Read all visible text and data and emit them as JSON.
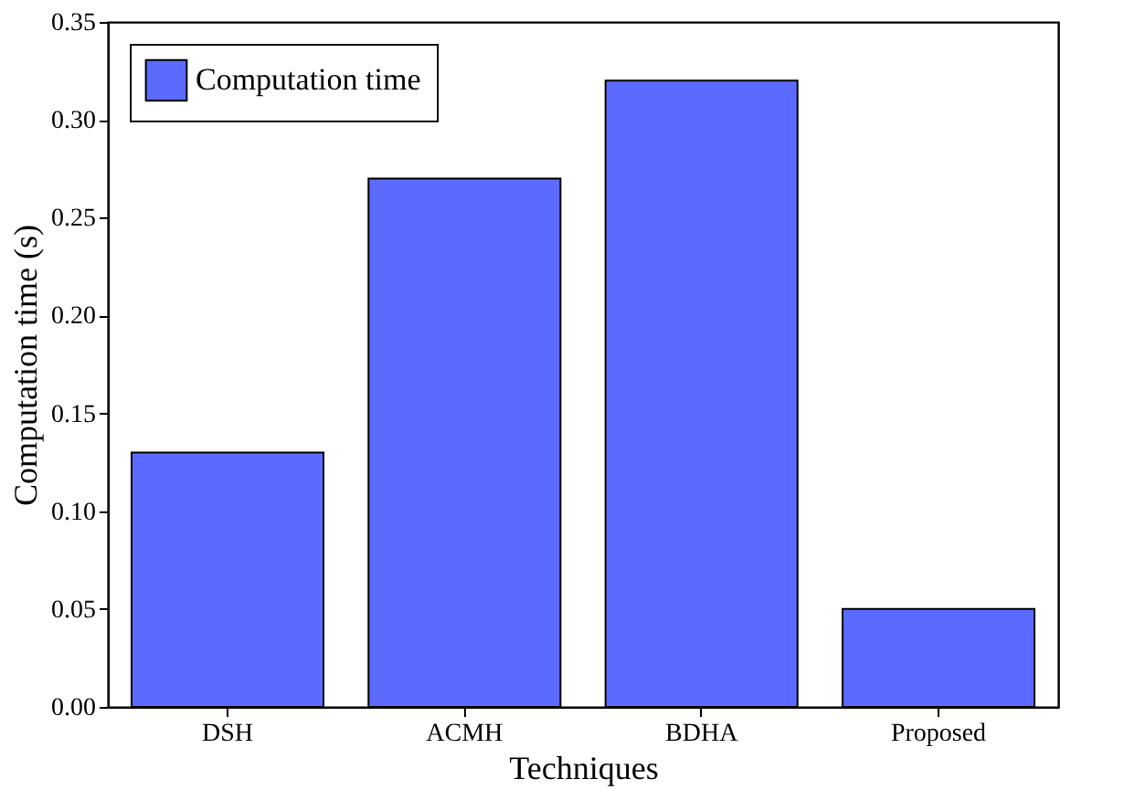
{
  "chart_data": {
    "type": "bar",
    "xlabel": "Techniques",
    "ylabel": "Computation time (s)",
    "categories": [
      "DSH",
      "ACMH",
      "BDHA",
      "Proposed"
    ],
    "series": [
      {
        "name": "Computation time",
        "color": "#5b6bff",
        "values": [
          0.13,
          0.27,
          0.32,
          0.05
        ]
      }
    ],
    "ylim": [
      0,
      0.35
    ],
    "yticks": [
      {
        "value": 0,
        "label": "0.00"
      },
      {
        "value": 0.05,
        "label": "0.05"
      },
      {
        "value": 0.1,
        "label": "0.10"
      },
      {
        "value": 0.15,
        "label": "0.15"
      },
      {
        "value": 0.2,
        "label": "0.20"
      },
      {
        "value": 0.25,
        "label": "0.25"
      },
      {
        "value": 0.3,
        "label": "0.30"
      },
      {
        "value": 0.35,
        "label": "0.35"
      }
    ],
    "grid": false,
    "legend": "top left"
  }
}
